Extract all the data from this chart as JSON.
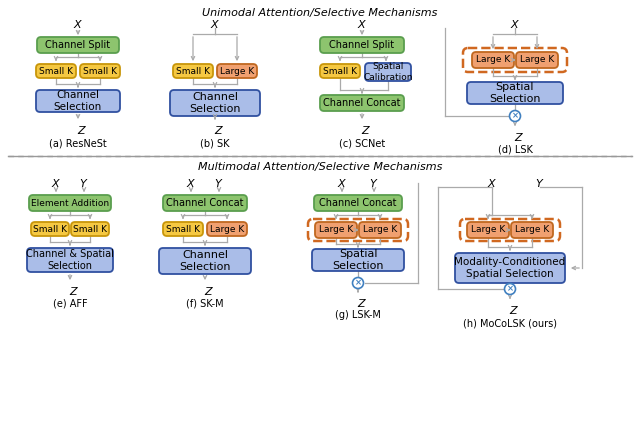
{
  "title_top": "Unimodal Attention/Selective Mechanisms",
  "title_bottom": "Multimodal Attention/Selective Mechanisms",
  "bg_color": "#ffffff",
  "colors": {
    "green_fill": "#8dc46e",
    "green_border": "#5a9e4e",
    "yellow_fill": "#f5c842",
    "yellow_border": "#c8960a",
    "orange_fill": "#f0a070",
    "orange_border": "#c06820",
    "blue_light_fill": "#aabde8",
    "blue_light_border": "#3050a0",
    "arrow_color": "#aaaaaa",
    "dashed_orange": "#d06820",
    "multiply_border": "#4080c0",
    "multiply_fill": "#ffffff"
  },
  "labels": {
    "a": "(a) ResNeSt",
    "b": "(b) SK",
    "c": "(c) SCNet",
    "d": "(d) LSK",
    "e": "(e) AFF",
    "f": "(f) SK-M",
    "g": "(g) LSK-M",
    "h": "(h) MoCoLSK (ours)"
  }
}
